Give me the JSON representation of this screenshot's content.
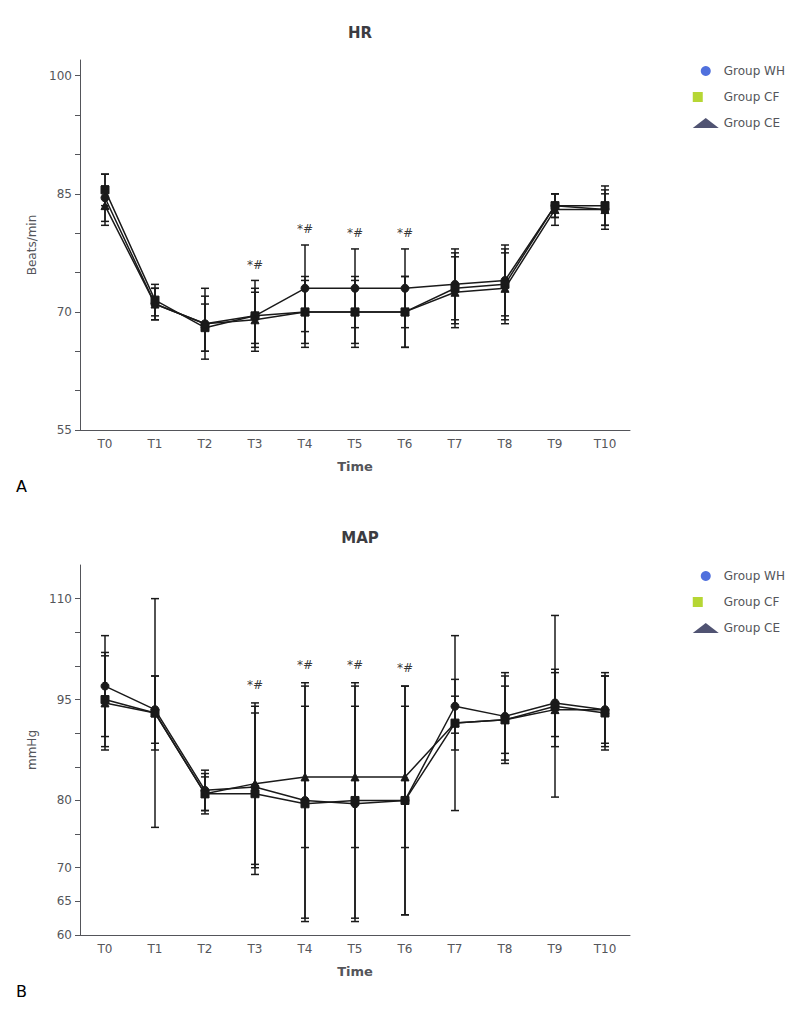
{
  "chart_data": [
    {
      "type": "line",
      "title": "HR",
      "xlabel": "Time",
      "ylabel": "Beats/min",
      "panel_label": "A",
      "categories": [
        "T0",
        "T1",
        "T2",
        "T3",
        "T4",
        "T5",
        "T6",
        "T7",
        "T8",
        "T9",
        "T10"
      ],
      "ylim": [
        55,
        102
      ],
      "yticks": [
        55,
        {
          "value": 60,
          "label": ""
        },
        {
          "value": 65,
          "label": ""
        },
        70,
        {
          "value": 75,
          "label": ""
        },
        {
          "value": 80,
          "label": ""
        },
        85,
        {
          "value": 90,
          "label": ""
        },
        {
          "value": 95,
          "label": ""
        },
        100
      ],
      "legend": "right",
      "series": [
        {
          "name": "Group WH",
          "color": "#1a1a1a",
          "marker": "circle",
          "values": [
            84.5,
            71.0,
            68.5,
            69.5,
            73.0,
            73.0,
            73.0,
            73.5,
            74.0,
            83.5,
            83.0
          ],
          "err": [
            3.0,
            2.0,
            4.5,
            4.5,
            5.5,
            5.0,
            5.0,
            4.5,
            4.5,
            1.5,
            2.5
          ]
        },
        {
          "name": "Group CF",
          "color": "#1a1a1a",
          "marker": "square",
          "values": [
            85.5,
            71.5,
            68.0,
            69.5,
            70.0,
            70.0,
            70.0,
            73.0,
            73.5,
            83.5,
            83.5
          ],
          "err": [
            2.0,
            2.0,
            3.0,
            3.5,
            4.5,
            4.0,
            4.5,
            4.5,
            4.5,
            1.5,
            2.5
          ]
        },
        {
          "name": "Group CE",
          "color": "#1a1a1a",
          "marker": "triangle",
          "values": [
            83.5,
            71.0,
            68.5,
            69.0,
            70.0,
            70.0,
            70.0,
            72.5,
            73.0,
            83.0,
            83.0
          ],
          "err": [
            2.5,
            2.0,
            3.5,
            3.5,
            4.0,
            4.5,
            4.5,
            4.5,
            4.5,
            2.0,
            2.0
          ]
        }
      ],
      "annotations": [
        {
          "x": "T3",
          "y": 75.0,
          "text": "*#"
        },
        {
          "x": "T4",
          "y": 79.5,
          "text": "*#"
        },
        {
          "x": "T5",
          "y": 79.0,
          "text": "*#"
        },
        {
          "x": "T6",
          "y": 79.0,
          "text": "*#"
        }
      ]
    },
    {
      "type": "line",
      "title": "MAP",
      "xlabel": "Time",
      "ylabel": "mmHg",
      "panel_label": "B",
      "categories": [
        "T0",
        "T1",
        "T2",
        "T3",
        "T4",
        "T5",
        "T6",
        "T7",
        "T8",
        "T9",
        "T10"
      ],
      "ylim": [
        60,
        115
      ],
      "yticks": [
        60,
        65,
        70,
        {
          "value": 75,
          "label": ""
        },
        80,
        {
          "value": 85,
          "label": ""
        },
        {
          "value": 90,
          "label": ""
        },
        95,
        {
          "value": 100,
          "label": ""
        },
        {
          "value": 105,
          "label": ""
        },
        110
      ],
      "legend": "right",
      "series": [
        {
          "name": "Group WH",
          "color": "#1a1a1a",
          "marker": "circle",
          "values": [
            97.0,
            93.5,
            81.5,
            82.0,
            80.0,
            79.5,
            80.0,
            94.0,
            92.5,
            94.5,
            93.5
          ],
          "err": [
            7.5,
            5.0,
            3.0,
            12.0,
            17.5,
            17.5,
            17.0,
            4.0,
            6.5,
            5.0,
            5.5
          ]
        },
        {
          "name": "Group CF",
          "color": "#1a1a1a",
          "marker": "square",
          "values": [
            95.0,
            93.0,
            81.0,
            81.0,
            79.5,
            80.0,
            80.0,
            91.5,
            92.0,
            94.0,
            93.0
          ],
          "err": [
            7.0,
            17.0,
            3.0,
            12.0,
            17.5,
            17.5,
            17.0,
            13.0,
            6.5,
            13.5,
            5.5
          ]
        },
        {
          "name": "Group CE",
          "color": "#1a1a1a",
          "marker": "triangle",
          "values": [
            94.5,
            93.0,
            81.0,
            82.5,
            83.5,
            83.5,
            83.5,
            91.5,
            92.0,
            93.5,
            93.5
          ],
          "err": [
            7.0,
            5.5,
            2.5,
            12.0,
            10.5,
            10.5,
            10.5,
            4.0,
            5.0,
            5.5,
            5.0
          ]
        }
      ],
      "annotations": [
        {
          "x": "T3",
          "y": 96.0,
          "text": "*#"
        },
        {
          "x": "T4",
          "y": 99.0,
          "text": "*#"
        },
        {
          "x": "T5",
          "y": 99.0,
          "text": "*#"
        },
        {
          "x": "T6",
          "y": 98.5,
          "text": "*#"
        }
      ]
    }
  ]
}
